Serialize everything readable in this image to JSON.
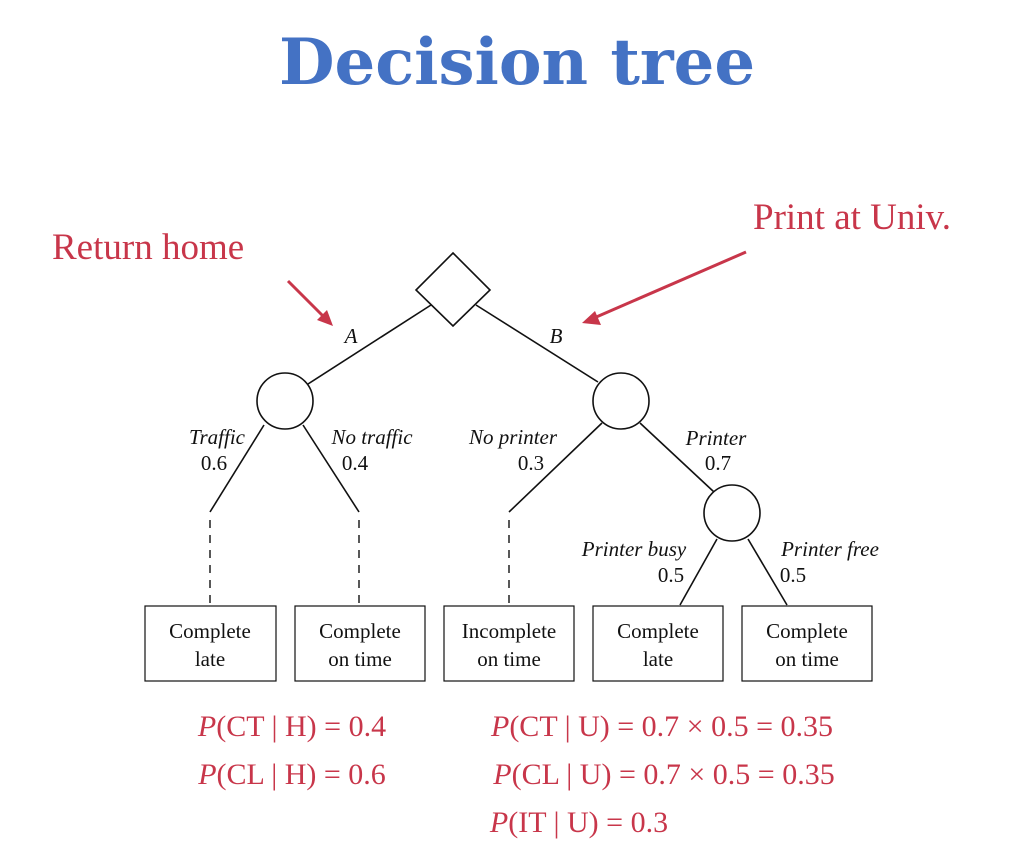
{
  "title": "Decision tree",
  "annotations": {
    "left": "Return home",
    "right": "Print at Univ."
  },
  "branches": {
    "a": "A",
    "b": "B",
    "traffic": {
      "label": "Traffic",
      "prob": "0.6"
    },
    "no_traffic": {
      "label": "No traffic",
      "prob": "0.4"
    },
    "no_printer": {
      "label": "No printer",
      "prob": "0.3"
    },
    "printer": {
      "label": "Printer",
      "prob": "0.7"
    },
    "printer_busy": {
      "label": "Printer busy",
      "prob": "0.5"
    },
    "printer_free": {
      "label": "Printer free",
      "prob": "0.5"
    }
  },
  "outcomes": [
    {
      "line1": "Complete",
      "line2": "late"
    },
    {
      "line1": "Complete",
      "line2": "on time"
    },
    {
      "line1": "Incomplete",
      "line2": "on time"
    },
    {
      "line1": "Complete",
      "line2": "late"
    },
    {
      "line1": "Complete",
      "line2": "on time"
    }
  ],
  "formulas": {
    "home": [
      {
        "p": "P",
        "body": "(CT | H) = 0.4"
      },
      {
        "p": "P",
        "body": "(CL | H) = 0.6"
      }
    ],
    "univ": [
      {
        "p": "P",
        "body": "(CT | U) = 0.7 × 0.5 = 0.35"
      },
      {
        "p": "P",
        "body": "(CL | U) = 0.7 × 0.5 = 0.35"
      },
      {
        "p": "P",
        "body": "(IT | U) = 0.3"
      }
    ]
  },
  "colors": {
    "title": "#4472c4",
    "accent": "#c8364a",
    "ink": "#111111"
  }
}
